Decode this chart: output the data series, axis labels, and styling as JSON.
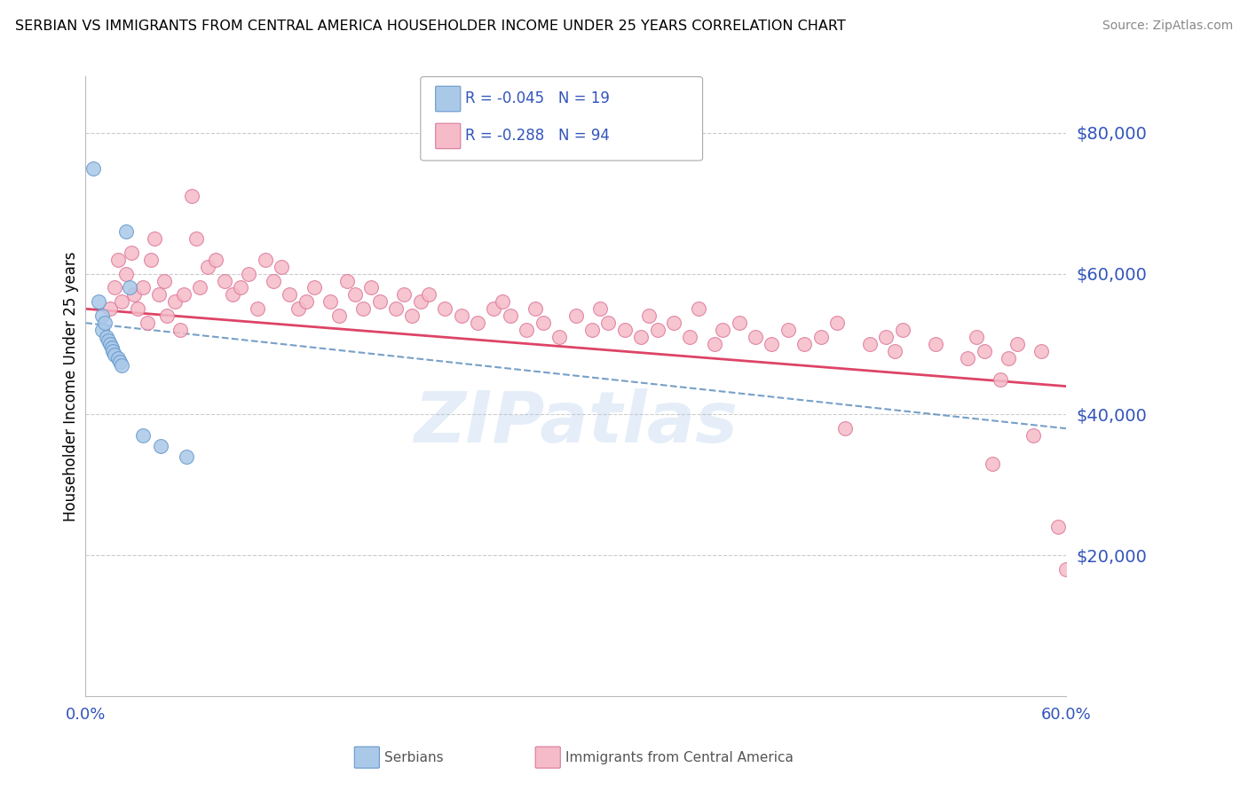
{
  "title": "SERBIAN VS IMMIGRANTS FROM CENTRAL AMERICA HOUSEHOLDER INCOME UNDER 25 YEARS CORRELATION CHART",
  "source": "Source: ZipAtlas.com",
  "ylabel": "Householder Income Under 25 years",
  "xlim": [
    0.0,
    0.6
  ],
  "ylim": [
    0,
    88000
  ],
  "yticks": [
    20000,
    40000,
    60000,
    80000
  ],
  "ytick_labels": [
    "$20,000",
    "$40,000",
    "$60,000",
    "$80,000"
  ],
  "xtick_left_label": "0.0%",
  "xtick_right_label": "60.0%",
  "serbian_color": "#aac8e8",
  "serbian_edge_color": "#6699cc",
  "immigrant_color": "#f5bbc8",
  "immigrant_edge_color": "#dd7799",
  "trend_serbian_color": "#5588bb",
  "trend_immigrant_color": "#dd4466",
  "legend_r_serbian": "R = -0.045",
  "legend_n_serbian": "N = 19",
  "legend_r_immigrant": "R = -0.288",
  "legend_n_immigrant": "N = 94",
  "watermark": "ZIPatlas",
  "background_color": "#ffffff",
  "grid_color": "#cccccc",
  "axis_color": "#3355bb",
  "serbian_x": [
    0.005,
    0.008,
    0.01,
    0.01,
    0.012,
    0.013,
    0.014,
    0.015,
    0.016,
    0.017,
    0.018,
    0.02,
    0.021,
    0.022,
    0.025,
    0.027,
    0.035,
    0.046,
    0.062
  ],
  "serbian_y": [
    75000,
    56000,
    54000,
    52000,
    53000,
    51000,
    50500,
    50000,
    49500,
    49000,
    48500,
    48000,
    47500,
    47000,
    66000,
    58000,
    37000,
    35500,
    34000
  ],
  "immigrant_x": [
    0.015,
    0.018,
    0.02,
    0.022,
    0.025,
    0.028,
    0.03,
    0.032,
    0.035,
    0.038,
    0.04,
    0.042,
    0.045,
    0.048,
    0.05,
    0.055,
    0.058,
    0.06,
    0.065,
    0.068,
    0.07,
    0.075,
    0.08,
    0.085,
    0.09,
    0.095,
    0.1,
    0.105,
    0.11,
    0.115,
    0.12,
    0.125,
    0.13,
    0.135,
    0.14,
    0.15,
    0.155,
    0.16,
    0.165,
    0.17,
    0.175,
    0.18,
    0.19,
    0.195,
    0.2,
    0.205,
    0.21,
    0.22,
    0.23,
    0.24,
    0.25,
    0.255,
    0.26,
    0.27,
    0.275,
    0.28,
    0.29,
    0.3,
    0.31,
    0.315,
    0.32,
    0.33,
    0.34,
    0.345,
    0.35,
    0.36,
    0.37,
    0.375,
    0.385,
    0.39,
    0.4,
    0.41,
    0.42,
    0.43,
    0.44,
    0.45,
    0.46,
    0.465,
    0.48,
    0.49,
    0.495,
    0.5,
    0.52,
    0.54,
    0.545,
    0.55,
    0.555,
    0.56,
    0.565,
    0.57,
    0.58,
    0.585,
    0.595,
    0.6
  ],
  "immigrant_y": [
    55000,
    58000,
    62000,
    56000,
    60000,
    63000,
    57000,
    55000,
    58000,
    53000,
    62000,
    65000,
    57000,
    59000,
    54000,
    56000,
    52000,
    57000,
    71000,
    65000,
    58000,
    61000,
    62000,
    59000,
    57000,
    58000,
    60000,
    55000,
    62000,
    59000,
    61000,
    57000,
    55000,
    56000,
    58000,
    56000,
    54000,
    59000,
    57000,
    55000,
    58000,
    56000,
    55000,
    57000,
    54000,
    56000,
    57000,
    55000,
    54000,
    53000,
    55000,
    56000,
    54000,
    52000,
    55000,
    53000,
    51000,
    54000,
    52000,
    55000,
    53000,
    52000,
    51000,
    54000,
    52000,
    53000,
    51000,
    55000,
    50000,
    52000,
    53000,
    51000,
    50000,
    52000,
    50000,
    51000,
    53000,
    38000,
    50000,
    51000,
    49000,
    52000,
    50000,
    48000,
    51000,
    49000,
    33000,
    45000,
    48000,
    50000,
    37000,
    49000,
    24000,
    18000
  ]
}
